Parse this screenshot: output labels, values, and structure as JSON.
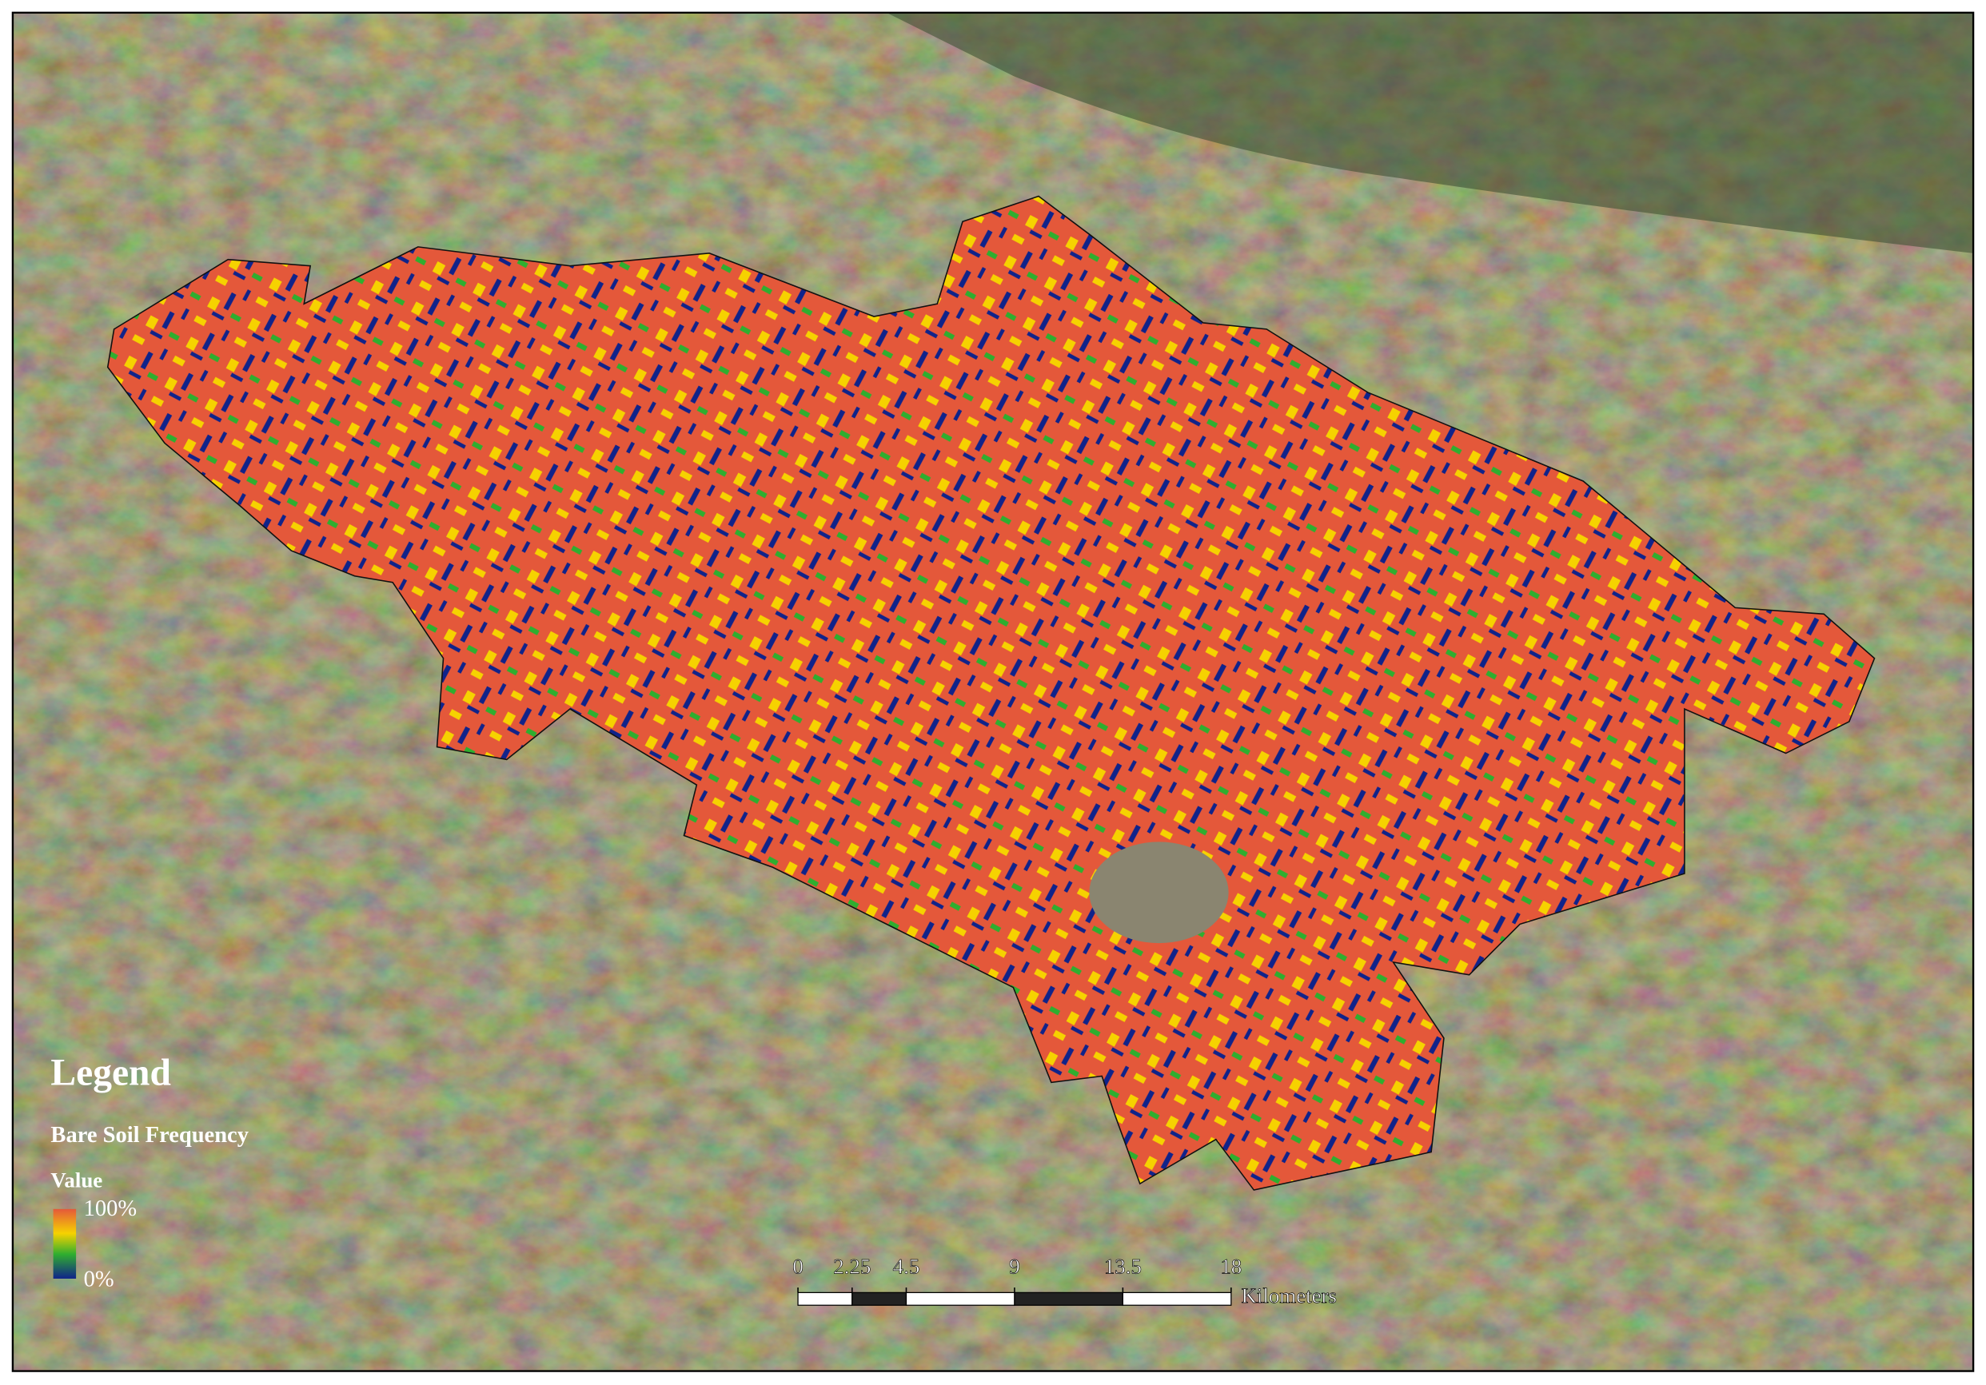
{
  "legend": {
    "title": "Legend",
    "layer": "Bare Soil Frequency",
    "field": "Value",
    "max_label": "100%",
    "min_label": "0%"
  },
  "scale_bar": {
    "ticks": [
      0,
      2.25,
      4.5,
      9,
      13.5,
      18
    ],
    "unit": "Kilometers"
  }
}
